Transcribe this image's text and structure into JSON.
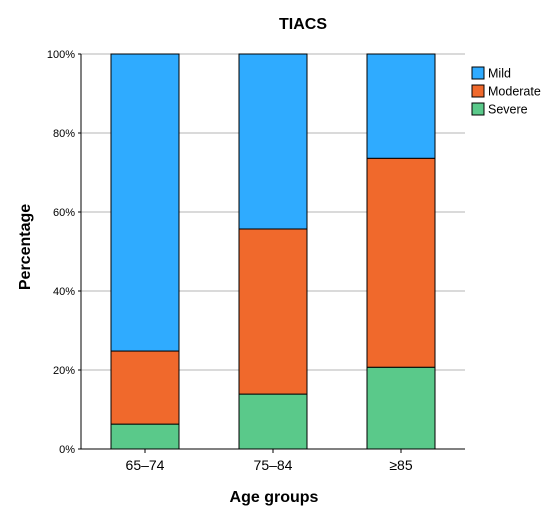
{
  "chart_data": {
    "type": "bar",
    "stacked": true,
    "title": "TIACS",
    "xlabel": "Age groups",
    "ylabel": "Percentage",
    "categories": [
      "65–74",
      "75–84",
      "≥85"
    ],
    "series": [
      {
        "name": "Severe",
        "color": "#5ac98a",
        "values": [
          6.3,
          13.9,
          20.7
        ]
      },
      {
        "name": "Moderate",
        "color": "#f0692c",
        "values": [
          18.5,
          41.8,
          52.9
        ]
      },
      {
        "name": "Mild",
        "color": "#2fabff",
        "values": [
          75.2,
          44.3,
          26.4
        ]
      }
    ],
    "ylim": [
      0,
      100
    ],
    "yticks": [
      "0%",
      "20%",
      "40%",
      "60%",
      "80%",
      "100%"
    ],
    "ytick_values": [
      0,
      20,
      40,
      60,
      80,
      100
    ],
    "grid": true,
    "legend_placement": "top-right",
    "legend_order": [
      "Mild",
      "Moderate",
      "Severe"
    ]
  }
}
